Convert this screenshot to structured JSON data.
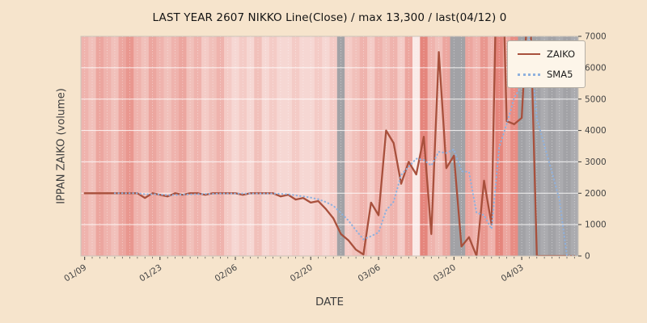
{
  "figure": {
    "title": "LAST YEAR 2607 NIKKO Line(Close) / max 13,300 / last(04/12) 0",
    "xlabel": "DATE",
    "ylabel": "IPPAN ZAIKO (volume)"
  },
  "colors": {
    "figure_bg": "#f6e4cc",
    "plot_bg": "#dcd8d4",
    "grid": "#ffffff",
    "spine": "#c9c3ba",
    "tick_label": "#444444",
    "legend_bg": "#fdf5e9",
    "legend_border": "#b5afa5",
    "zaiko_line": "#a8503c",
    "sma5_line": "#8fb1de"
  },
  "chart_data": {
    "type": "line",
    "title": "LAST YEAR 2607 NIKKO Line(Close) / max 13,300 / last(04/12) 0",
    "xlabel": "DATE",
    "ylabel": "IPPAN ZAIKO (volume)",
    "ylim": [
      0,
      7000
    ],
    "yticks": [
      0,
      1000,
      2000,
      3000,
      4000,
      5000,
      6000,
      7000
    ],
    "grid": true,
    "legend_position": "upper right",
    "max_value": 13300,
    "last": {
      "date": "04/12",
      "value": 0
    },
    "dates": [
      "01/09",
      "01/10",
      "01/11",
      "01/12",
      "01/13",
      "01/16",
      "01/17",
      "01/18",
      "01/19",
      "01/20",
      "01/23",
      "01/24",
      "01/25",
      "01/26",
      "01/27",
      "01/30",
      "01/31",
      "02/01",
      "02/02",
      "02/03",
      "02/06",
      "02/07",
      "02/08",
      "02/09",
      "02/10",
      "02/13",
      "02/14",
      "02/15",
      "02/16",
      "02/17",
      "02/20",
      "02/21",
      "02/22",
      "02/24",
      "02/27",
      "02/28",
      "03/01",
      "03/02",
      "03/03",
      "03/06",
      "03/07",
      "03/08",
      "03/09",
      "03/10",
      "03/13",
      "03/14",
      "03/15",
      "03/16",
      "03/17",
      "03/20",
      "03/22",
      "03/23",
      "03/24",
      "03/27",
      "03/28",
      "03/29",
      "03/30",
      "03/31",
      "04/03",
      "04/04",
      "04/05",
      "04/06",
      "04/07",
      "04/10",
      "04/11",
      "04/12"
    ],
    "xticks": [
      {
        "index": 0,
        "label": "01/09"
      },
      {
        "index": 10,
        "label": "01/23"
      },
      {
        "index": 20,
        "label": "02/06"
      },
      {
        "index": 30,
        "label": "02/20"
      },
      {
        "index": 39,
        "label": "03/06"
      },
      {
        "index": 49,
        "label": "03/20"
      },
      {
        "index": 58,
        "label": "04/03"
      }
    ],
    "series": [
      {
        "name": "ZAIKO",
        "style": "solid",
        "color": "#a8503c",
        "values": [
          2000,
          2000,
          2000,
          2000,
          2000,
          2000,
          2000,
          2000,
          1850,
          2000,
          1950,
          1900,
          2000,
          1950,
          2000,
          2000,
          1950,
          2000,
          2000,
          2000,
          2000,
          1950,
          2000,
          2000,
          2000,
          2000,
          1900,
          1950,
          1800,
          1850,
          1700,
          1750,
          1500,
          1200,
          700,
          500,
          200,
          50,
          1700,
          1300,
          4000,
          3600,
          2300,
          3000,
          2600,
          3800,
          700,
          6500,
          2800,
          3200,
          300,
          600,
          0,
          2400,
          1000,
          13300,
          4300,
          4200,
          4400,
          9000,
          0,
          0,
          0,
          0,
          0,
          0
        ]
      },
      {
        "name": "SMA5",
        "style": "dotted",
        "color": "#8fb1de",
        "values": [
          null,
          null,
          null,
          null,
          2000,
          2000,
          2000,
          2000,
          1970,
          1970,
          1960,
          1940,
          1940,
          1960,
          1960,
          1970,
          1980,
          1980,
          1990,
          1990,
          1990,
          1990,
          1990,
          1990,
          1990,
          1990,
          1980,
          1970,
          1930,
          1900,
          1860,
          1810,
          1720,
          1600,
          1370,
          1130,
          820,
          530,
          630,
          750,
          1450,
          1730,
          2580,
          2840,
          3100,
          3060,
          2880,
          3320,
          3280,
          3400,
          2700,
          2680,
          1380,
          1300,
          860,
          3460,
          4200,
          5040,
          5440,
          7040,
          4380,
          3520,
          2680,
          1800,
          0,
          0
        ]
      }
    ],
    "day_colors": [
      "#efb3ad",
      "#f1c0ba",
      "#eca69f",
      "#efb3ad",
      "#f1c0ba",
      "#eca69f",
      "#e9978f",
      "#efb3ad",
      "#f1c0ba",
      "#eca69f",
      "#efb3ad",
      "#f1c0ba",
      "#efb3ad",
      "#eca69f",
      "#f1c0ba",
      "#efb3ad",
      "#f4cbc6",
      "#f1c0ba",
      "#efb3ad",
      "#f4cbc6",
      "#f6d7d3",
      "#f4cbc6",
      "#f6d7d3",
      "#f1c0ba",
      "#f6d7d3",
      "#f4cbc6",
      "#f6d7d3",
      "#f6d7d3",
      "#f4cbc6",
      "#f6d7d3",
      "#f6d7d3",
      "#f4cbc6",
      "#f6d7d3",
      "#f4cbc6",
      "#a2a2a6",
      "#f4cbc6",
      "#f1c0ba",
      "#efb3ad",
      "#f4cbc6",
      "#efb3ad",
      "#f1c0ba",
      "#efb3ad",
      "#f4cbc6",
      "#eca69f",
      "#faeae7",
      "#e5857c",
      "#efb3ad",
      "#f1c0ba",
      "#eca69f",
      "#a2a2a6",
      "#a2a2a6",
      "#eca69f",
      "#efb3ad",
      "#e9978f",
      "#efb3ad",
      "#e5857c",
      "#eca69f",
      "#e88d84",
      "#a2a2a6",
      "#ababaf",
      "#a2a2a6",
      "#ababaf",
      "#a2a2a6",
      "#ababaf",
      "#a2a2a6",
      "#ababaf"
    ]
  }
}
